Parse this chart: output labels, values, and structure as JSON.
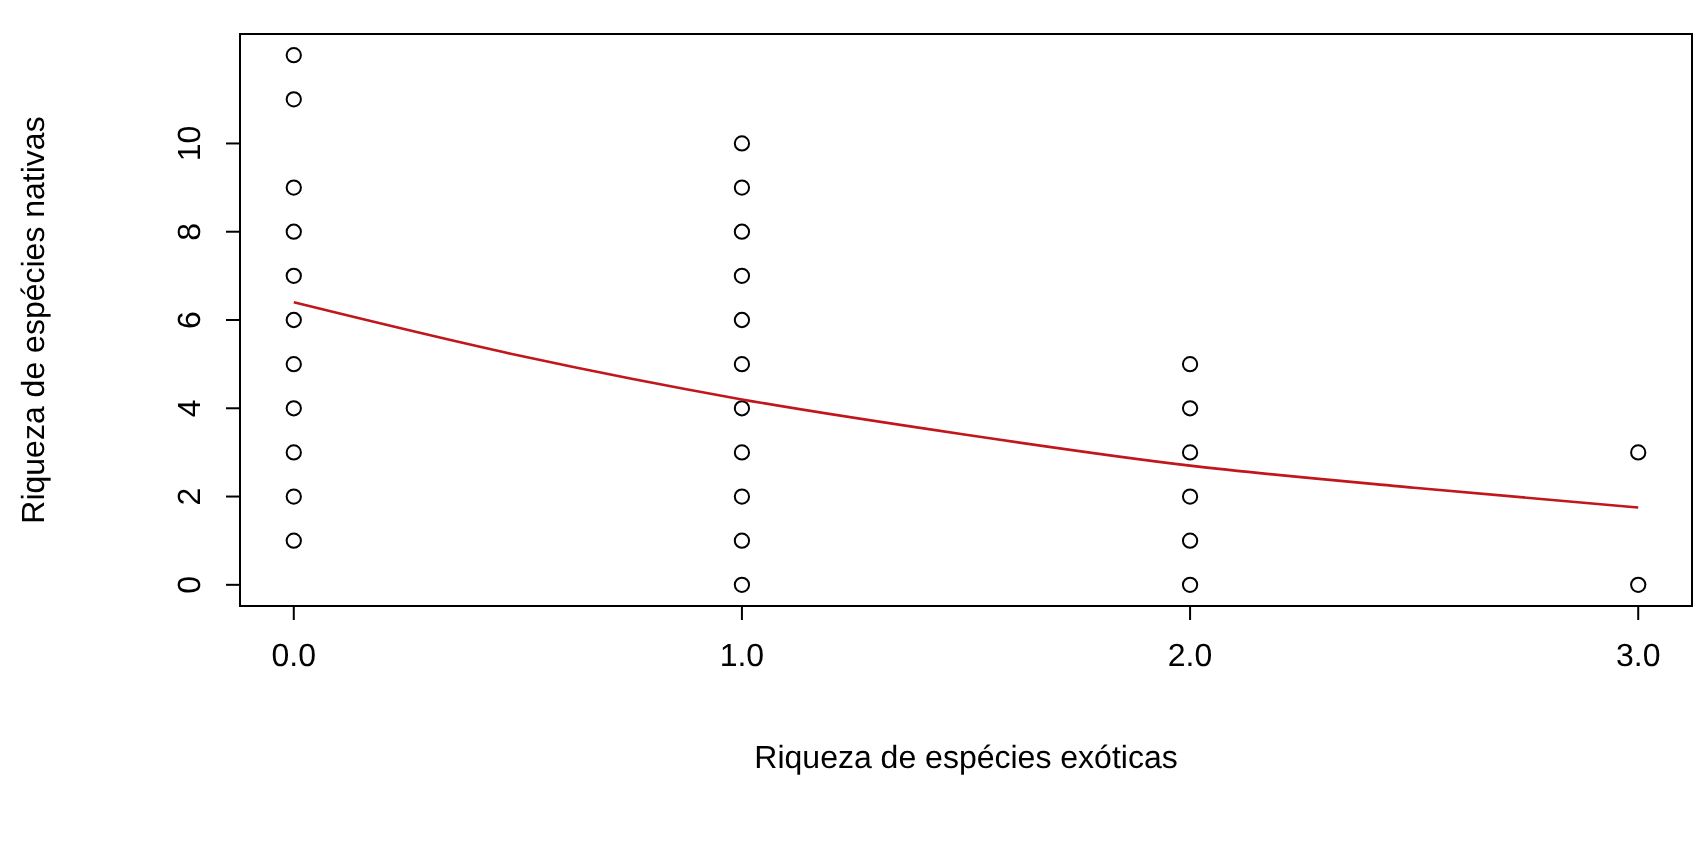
{
  "chart_data": {
    "type": "scatter",
    "xlabel": "Riqueza de espécies exóticas",
    "ylabel": "Riqueza de espécies nativas",
    "xlim": [
      -0.12,
      3.12
    ],
    "ylim": [
      -0.48,
      12.48
    ],
    "xticks": [
      {
        "value": 0,
        "label": "0.0"
      },
      {
        "value": 1,
        "label": "1.0"
      },
      {
        "value": 2,
        "label": "2.0"
      },
      {
        "value": 3,
        "label": "3.0"
      }
    ],
    "yticks": [
      0,
      2,
      4,
      6,
      8,
      10
    ],
    "grid": false,
    "series": [
      {
        "marker": "circle",
        "color": "#000000",
        "x": [
          0,
          0,
          0,
          0,
          0,
          0,
          0,
          0,
          0,
          0,
          0,
          1,
          1,
          1,
          1,
          1,
          1,
          1,
          1,
          1,
          1,
          1,
          2,
          2,
          2,
          2,
          2,
          2,
          3,
          3
        ],
        "values": [
          1,
          2,
          3,
          4,
          5,
          6,
          7,
          8,
          9,
          11,
          12,
          0,
          1,
          2,
          3,
          4,
          5,
          6,
          7,
          8,
          9,
          10,
          0,
          1,
          2,
          3,
          4,
          5,
          0,
          3
        ]
      },
      {
        "type": "line",
        "color": "#c0161c",
        "x": [
          0,
          0.5,
          1,
          1.5,
          2,
          2.5,
          3
        ],
        "values": [
          6.4,
          5.2,
          4.2,
          3.4,
          2.7,
          2.2,
          1.75
        ]
      }
    ]
  }
}
